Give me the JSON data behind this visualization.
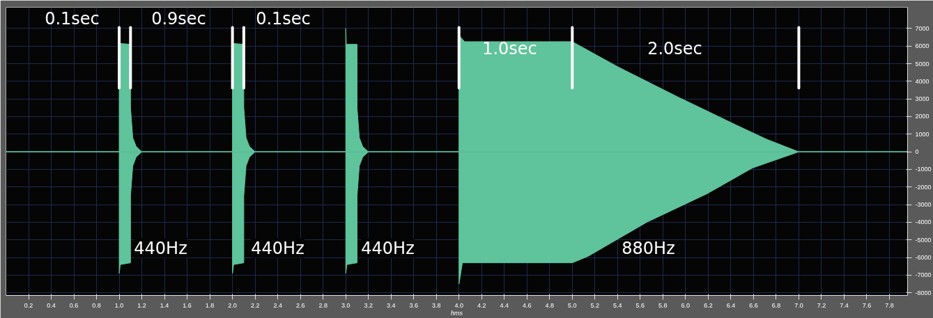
{
  "chart_data": {
    "type": "area",
    "xlabel": "hms",
    "xlim": [
      0,
      7.96
    ],
    "ylim": [
      -8150,
      8200
    ],
    "xticks": [
      0.2,
      0.4,
      0.6,
      0.8,
      {
        "value": 1,
        "label": "1.0"
      },
      1.2,
      1.4,
      1.6,
      1.8,
      {
        "value": 2,
        "label": "2.0"
      },
      2.2,
      2.4,
      2.6,
      2.8,
      {
        "value": 3,
        "label": "3.0"
      },
      3.2,
      3.4,
      3.6,
      3.8,
      {
        "value": 4,
        "label": "4.0"
      },
      4.2,
      4.4,
      4.6,
      4.8,
      {
        "value": 5,
        "label": "5.0"
      },
      5.2,
      5.4,
      5.6,
      5.8,
      {
        "value": 6,
        "label": "6.0"
      },
      6.2,
      6.4,
      6.6,
      6.8,
      {
        "value": 7,
        "label": "7.0"
      },
      7.2,
      7.4,
      7.6,
      7.8
    ],
    "yticks": [
      -8000,
      -7000,
      -6000,
      -5000,
      -4000,
      -3000,
      -2000,
      -1000,
      0,
      1000,
      2000,
      3000,
      4000,
      5000,
      6000,
      7000
    ],
    "grid": true,
    "series": [
      {
        "color": "#5fc39c",
        "x": [
          0,
          1.0,
          1.0,
          1.005,
          1.1,
          1.1,
          1.12,
          1.15,
          1.2,
          2.0,
          2.0,
          2.005,
          2.1,
          2.1,
          2.12,
          2.15,
          2.2,
          3.0,
          3.0,
          3.005,
          3.1,
          3.1,
          3.12,
          3.15,
          3.2,
          4.0,
          4.0,
          4.05,
          5.0,
          5.4,
          5.93,
          6.45,
          6.72,
          7.0,
          7.96
        ],
        "values": [
          0,
          0,
          6250,
          6150,
          6100,
          2500,
          800,
          300,
          0,
          0,
          6250,
          6150,
          6100,
          2500,
          800,
          300,
          0,
          0,
          7000,
          6100,
          6100,
          2500,
          800,
          300,
          0,
          0,
          6600,
          6250,
          6250,
          4830,
          3120,
          1510,
          700,
          0,
          0
        ]
      },
      {
        "color": "#5fc39c",
        "x": [
          0,
          1.0,
          1.0,
          1.01,
          1.1,
          1.1,
          1.12,
          1.15,
          1.2,
          2.0,
          2.0,
          2.01,
          2.1,
          2.1,
          2.12,
          2.15,
          2.2,
          3.0,
          3.0,
          3.01,
          3.1,
          3.1,
          3.12,
          3.15,
          3.2,
          4.0,
          4.0,
          4.03,
          5.0,
          5.14,
          5.66,
          6.19,
          6.59,
          7.0,
          7.96
        ],
        "values": [
          0,
          0,
          -6900,
          -6400,
          -6300,
          -2500,
          -800,
          -300,
          0,
          0,
          -6900,
          -6400,
          -6300,
          -2500,
          -800,
          -300,
          0,
          0,
          -6900,
          -6400,
          -6300,
          -2500,
          -800,
          -300,
          0,
          0,
          -7500,
          -6300,
          -6300,
          -5930,
          -3990,
          -2380,
          -920,
          0,
          0
        ]
      }
    ],
    "ref_lines": [
      {
        "axis": "x",
        "value": 1.0,
        "color": "#ffffff"
      },
      {
        "axis": "x",
        "value": 1.1,
        "color": "#ffffff"
      },
      {
        "axis": "x",
        "value": 2.0,
        "color": "#ffffff"
      },
      {
        "axis": "x",
        "value": 2.1,
        "color": "#ffffff"
      },
      {
        "axis": "x",
        "value": 4.0,
        "color": "#ffffff"
      },
      {
        "axis": "x",
        "value": 5.0,
        "color": "#ffffff"
      },
      {
        "axis": "x",
        "value": 7.0,
        "color": "#ffffff"
      }
    ],
    "annotations": [
      "0.1sec",
      "0.9sec",
      "0.1sec",
      "1.0sec",
      "2.0sec",
      "440Hz",
      "440Hz",
      "440Hz",
      "880Hz"
    ]
  }
}
